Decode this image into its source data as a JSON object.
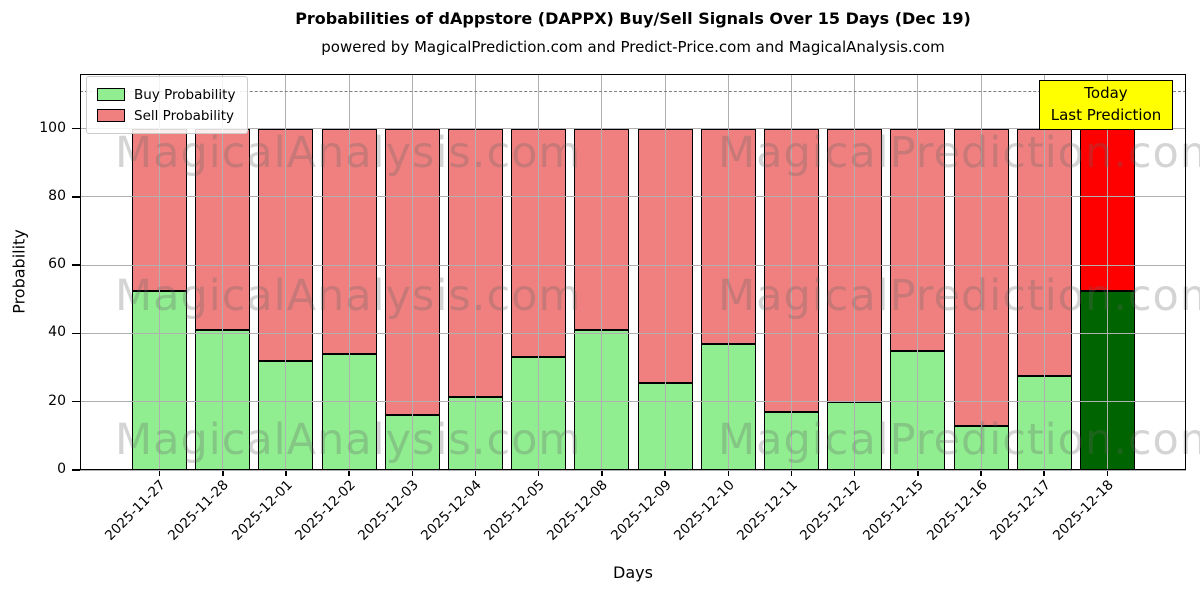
{
  "title": "Probabilities of dAppstore (DAPPX) Buy/Sell Signals Over 15 Days (Dec 19)",
  "subtitle": "powered by MagicalPrediction.com and Predict-Price.com and MagicalAnalysis.com",
  "axes": {
    "xlabel": "Days",
    "ylabel": "Probability",
    "yticks": [
      0,
      20,
      40,
      60,
      80,
      100
    ],
    "ylim": [
      0,
      116
    ],
    "threshold_line_y": 111,
    "grid_color": "#b0b0b0",
    "threshold_color": "#7f7f7f",
    "grid_on": true
  },
  "legend": {
    "position": "upper-left",
    "items": [
      {
        "label": "Buy Probability",
        "color": "#90EE90"
      },
      {
        "label": "Sell Probability",
        "color": "#F08080"
      }
    ]
  },
  "annotation": {
    "line1": "Today",
    "line2": "Last Prediction",
    "bg_color": "#FFFF00",
    "border_color": "#000000"
  },
  "watermarks": {
    "left_text": "MagicalAnalysis.com",
    "right_text": "MagicalPrediction.com",
    "color": "rgba(100,100,100,0.28)",
    "row_centers_y": [
      153,
      296,
      440
    ]
  },
  "chart_data": {
    "type": "bar",
    "stacked": true,
    "title": "Probabilities of dAppstore (DAPPX) Buy/Sell Signals Over 15 Days (Dec 19)",
    "xlabel": "Days",
    "ylabel": "Probability",
    "ylim": [
      0,
      116
    ],
    "categories": [
      "2025-11-27",
      "2025-11-28",
      "2025-12-01",
      "2025-12-02",
      "2025-12-03",
      "2025-12-04",
      "2025-12-05",
      "2025-12-08",
      "2025-12-09",
      "2025-12-10",
      "2025-12-11",
      "2025-12-12",
      "2025-12-15",
      "2025-12-16",
      "2025-12-17",
      "2025-12-18"
    ],
    "series": [
      {
        "name": "Buy Probability",
        "color": "#90EE90",
        "last_bar_color": "#006400",
        "values": [
          52.5,
          41,
          32,
          34,
          16,
          21.5,
          33,
          41,
          25.5,
          37,
          17,
          20,
          35,
          13,
          27.5,
          52.5
        ]
      },
      {
        "name": "Sell Probability",
        "color": "#F08080",
        "last_bar_color": "#FF0000",
        "values": [
          47.5,
          59,
          68,
          66,
          84,
          78.5,
          67,
          59,
          74.5,
          63,
          83,
          80,
          65,
          87,
          72.5,
          47.5
        ]
      }
    ],
    "bar_edge_color": "#000000",
    "legend_position": "upper-left"
  }
}
